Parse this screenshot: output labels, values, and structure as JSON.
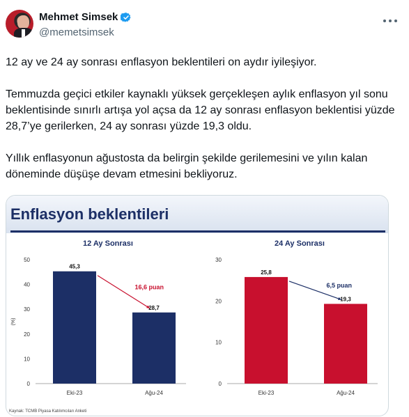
{
  "author": {
    "name": "Mehmet Simsek",
    "handle": "@memetsimsek"
  },
  "icons": {
    "verified": "verified-badge-icon",
    "more": "more-options-icon"
  },
  "colors": {
    "verified": "#1d9bf0",
    "navy_bar": "#1c2f66",
    "red_bar": "#c8102e",
    "annotation_red": "#c8102e",
    "annotation_navy": "#1c2f66"
  },
  "tweet": {
    "paragraphs": [
      "12 ay ve 24 ay sonrası enflasyon beklentileri on aydır iyileşiyor.",
      "Temmuzda geçici etkiler kaynaklı yüksek gerçekleşen aylık enflasyon yıl sonu beklentisinde sınırlı artışa yol açsa da 12 ay sonrası enflasyon beklentisi yüzde 28,7’ye gerilerken, 24 ay sonrası yüzde 19,3 oldu.",
      "Yıllık enflasyonun ağustosta da belirgin şekilde gerilemesini ve yılın kalan döneminde düşüşe devam etmesini bekliyoruz."
    ]
  },
  "media": {
    "title": "Enflasyon beklentileri",
    "source": "Kaynak: TCMB Piyasa Katılımcıları Anketi"
  },
  "chart_data": [
    {
      "type": "bar",
      "title": "12 Ay Sonrası",
      "ylabel": "(%)",
      "categories": [
        "Eki-23",
        "Ağu-24"
      ],
      "values": [
        45.3,
        28.7
      ],
      "value_labels": [
        "45,3",
        "28,7"
      ],
      "yticks": [
        "0",
        "10",
        "20",
        "30",
        "40",
        "50"
      ],
      "ylim": [
        0,
        50
      ],
      "annotation": "16,6 puan",
      "color": "#1c2f66",
      "annotation_color": "#c8102e",
      "arrow_color": "#c8102e",
      "grid": false
    },
    {
      "type": "bar",
      "title": "24 Ay Sonrası",
      "ylabel": "",
      "categories": [
        "Eki-23",
        "Ağu-24"
      ],
      "values": [
        25.8,
        19.3
      ],
      "value_labels": [
        "25,8",
        "19,3"
      ],
      "yticks": [
        "0",
        "10",
        "20",
        "30"
      ],
      "ylim": [
        0,
        30
      ],
      "annotation": "6,5 puan",
      "color": "#c8102e",
      "annotation_color": "#1c2f66",
      "arrow_color": "#1c2f66",
      "grid": false
    }
  ]
}
